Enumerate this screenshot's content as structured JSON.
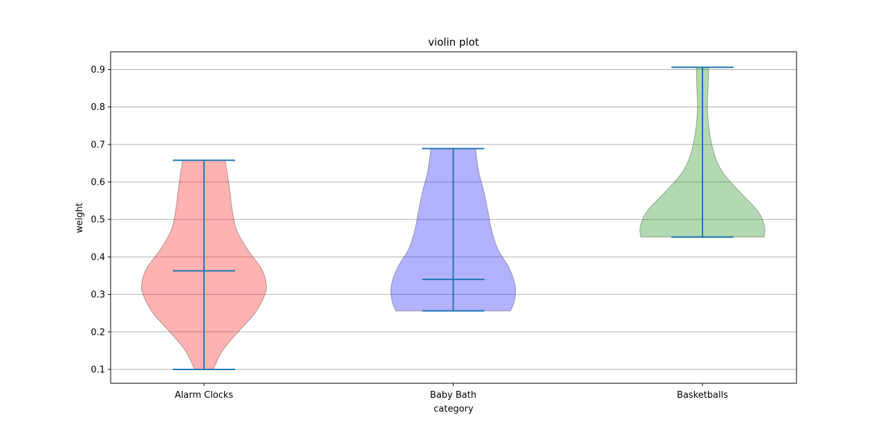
{
  "chart_data": {
    "type": "violin",
    "title": "violin plot",
    "xlabel": "category",
    "ylabel": "weight",
    "ylim": [
      0.063,
      0.947
    ],
    "yticks": [
      0.1,
      0.2,
      0.3,
      0.4,
      0.5,
      0.6,
      0.7,
      0.8,
      0.9
    ],
    "grid": "horizontal",
    "categories": [
      "Alarm Clocks",
      "Baby Bath",
      "Basketballs"
    ],
    "series": [
      {
        "min": 0.1,
        "max": 0.658,
        "median": 0.363,
        "color": "#ff0000",
        "density": [
          [
            0.1,
            0.15
          ],
          [
            0.15,
            0.3
          ],
          [
            0.2,
            0.55
          ],
          [
            0.25,
            0.82
          ],
          [
            0.3,
            0.98
          ],
          [
            0.33,
            1.0
          ],
          [
            0.37,
            0.92
          ],
          [
            0.42,
            0.7
          ],
          [
            0.47,
            0.53
          ],
          [
            0.52,
            0.46
          ],
          [
            0.57,
            0.42
          ],
          [
            0.62,
            0.38
          ],
          [
            0.658,
            0.34
          ]
        ]
      },
      {
        "min": 0.256,
        "max": 0.689,
        "median": 0.34,
        "color": "#0000ff",
        "density": [
          [
            0.256,
            0.92
          ],
          [
            0.28,
            0.98
          ],
          [
            0.32,
            1.0
          ],
          [
            0.37,
            0.9
          ],
          [
            0.42,
            0.72
          ],
          [
            0.47,
            0.62
          ],
          [
            0.52,
            0.56
          ],
          [
            0.57,
            0.5
          ],
          [
            0.62,
            0.42
          ],
          [
            0.66,
            0.38
          ],
          [
            0.689,
            0.36
          ]
        ]
      },
      {
        "min": 0.453,
        "max": 0.906,
        "median": 0.453,
        "color": "#008000",
        "density": [
          [
            0.453,
            0.99
          ],
          [
            0.48,
            1.0
          ],
          [
            0.52,
            0.9
          ],
          [
            0.57,
            0.62
          ],
          [
            0.62,
            0.35
          ],
          [
            0.66,
            0.22
          ],
          [
            0.7,
            0.15
          ],
          [
            0.75,
            0.1
          ],
          [
            0.8,
            0.08
          ],
          [
            0.85,
            0.09
          ],
          [
            0.906,
            0.1
          ]
        ]
      }
    ]
  }
}
